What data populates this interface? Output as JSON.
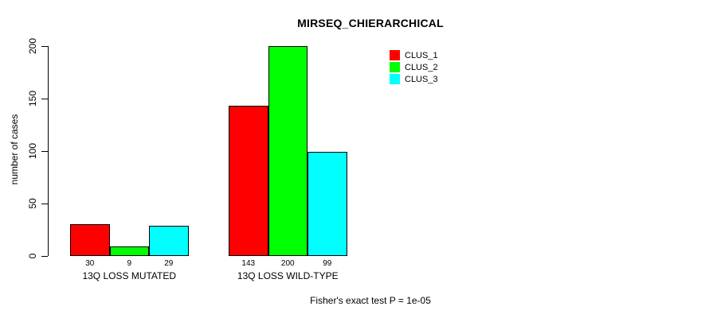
{
  "chart_data": {
    "type": "bar",
    "title": "MIRSEQ_CHIERARCHICAL",
    "ylabel": "number of cases",
    "xlabel": "",
    "categories": [
      "13Q LOSS MUTATED",
      "13Q LOSS WILD-TYPE"
    ],
    "series": [
      {
        "name": "CLUS_1",
        "color": "#ff0000",
        "values": [
          30,
          143
        ]
      },
      {
        "name": "CLUS_2",
        "color": "#00ff00",
        "values": [
          9,
          200
        ]
      },
      {
        "name": "CLUS_3",
        "color": "#00ffff",
        "values": [
          29,
          99
        ]
      }
    ],
    "bar_value_labels": [
      [
        "30",
        "9",
        "29"
      ],
      [
        "143",
        "200",
        "99"
      ]
    ],
    "y_ticks": [
      0,
      50,
      100,
      150,
      200
    ],
    "ylim": [
      0,
      200
    ],
    "grid": false,
    "legend_position": "top-right-inside",
    "bar_border_color": "#000000",
    "annotation": "Fisher's exact test P = 1e-05"
  }
}
